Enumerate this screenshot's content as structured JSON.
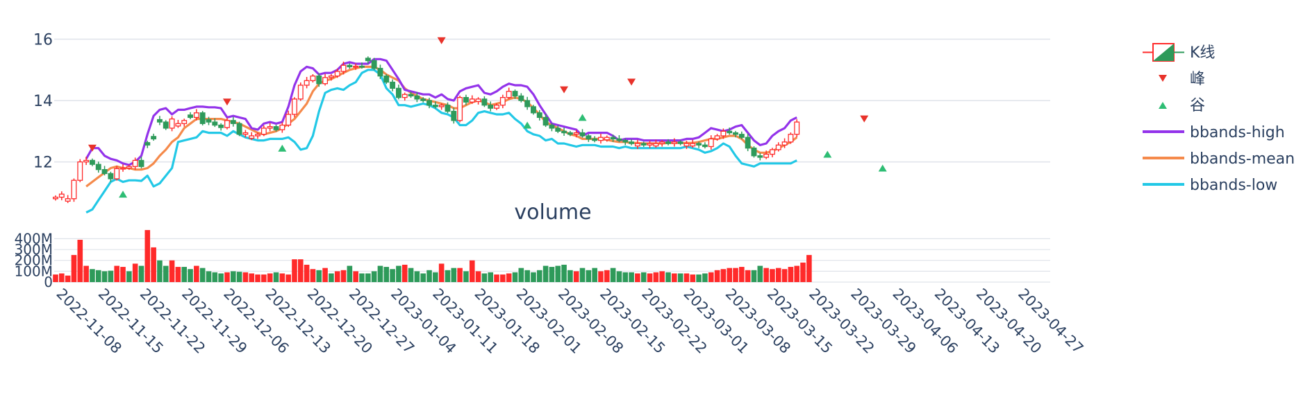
{
  "colors": {
    "up": "#ff2a2a",
    "down": "#2e9a5a",
    "peak": "#e8322a",
    "trough": "#2ebd74",
    "high": "#9333ea",
    "mean": "#f58a4b",
    "low": "#22c8e6",
    "grid": "#dfe3ea"
  },
  "chart_data": [
    {
      "type": "candlestick",
      "ylim": [
        10.5,
        16.6
      ],
      "yticks": [
        12,
        14,
        16
      ],
      "ytick_labels": [
        "12",
        "14",
        "16"
      ],
      "xticks": [
        "2022-11-08",
        "2022-11-15",
        "2022-11-22",
        "2022-11-29",
        "2022-12-06",
        "2022-12-13",
        "2022-12-20",
        "2022-12-27",
        "2023-01-04",
        "2023-01-11",
        "2023-01-18",
        "2023-02-01",
        "2023-02-08",
        "2023-02-15",
        "2023-02-22",
        "2023-03-01",
        "2023-03-08",
        "2023-03-15",
        "2023-03-22",
        "2023-03-29",
        "2023-04-06",
        "2023-04-13",
        "2023-04-20",
        "2023-04-27"
      ],
      "legend": {
        "candles": "K线",
        "peaks": "峰",
        "troughs": "谷",
        "high": "bbands-high",
        "mean": "bbands-mean",
        "low": "bbands-low"
      },
      "close": [
        10.85,
        10.95,
        10.8,
        11.4,
        12.0,
        12.05,
        11.92,
        11.75,
        11.62,
        11.45,
        11.78,
        11.8,
        11.85,
        12.05,
        11.85,
        12.55,
        12.75,
        13.3,
        13.1,
        13.4,
        13.25,
        13.35,
        13.45,
        13.6,
        13.25,
        13.3,
        13.2,
        13.12,
        13.35,
        13.25,
        12.9,
        12.95,
        12.85,
        12.9,
        13.1,
        13.15,
        13.05,
        13.2,
        13.55,
        14.05,
        14.5,
        14.65,
        14.8,
        14.55,
        14.75,
        14.8,
        14.95,
        15.15,
        15.1,
        15.12,
        15.1,
        15.3,
        15.05,
        14.8,
        14.6,
        14.4,
        14.1,
        14.2,
        14.15,
        14.05,
        14.0,
        13.85,
        13.8,
        13.85,
        13.65,
        13.35,
        14.1,
        13.95,
        14.05,
        14.05,
        13.85,
        13.75,
        13.85,
        14.1,
        14.3,
        14.15,
        14.0,
        13.8,
        13.6,
        13.45,
        13.2,
        13.1,
        13.0,
        12.95,
        12.9,
        12.95,
        12.85,
        12.75,
        12.7,
        12.8,
        12.8,
        12.75,
        12.7,
        12.65,
        12.6,
        12.6,
        12.55,
        12.6,
        12.6,
        12.65,
        12.6,
        12.65,
        12.6,
        12.6,
        12.6,
        12.55,
        12.5,
        12.75,
        12.85,
        13.0,
        12.95,
        12.9,
        12.8,
        12.45,
        12.2,
        12.15,
        12.25,
        12.4,
        12.55,
        12.65,
        12.9,
        13.3
      ],
      "dir": [
        1,
        1,
        1,
        1,
        1,
        1,
        -1,
        -1,
        -1,
        -1,
        1,
        1,
        1,
        1,
        -1,
        -1,
        -1,
        -1,
        -1,
        1,
        1,
        1,
        -1,
        1,
        -1,
        -1,
        -1,
        -1,
        1,
        -1,
        -1,
        1,
        1,
        1,
        1,
        1,
        -1,
        1,
        1,
        1,
        1,
        1,
        1,
        -1,
        1,
        1,
        1,
        1,
        -1,
        1,
        -1,
        -1,
        -1,
        -1,
        -1,
        -1,
        -1,
        1,
        -1,
        -1,
        -1,
        -1,
        -1,
        1,
        -1,
        -1,
        1,
        -1,
        1,
        1,
        -1,
        -1,
        1,
        1,
        1,
        -1,
        -1,
        -1,
        -1,
        -1,
        -1,
        -1,
        -1,
        -1,
        -1,
        1,
        -1,
        -1,
        -1,
        1,
        1,
        -1,
        -1,
        -1,
        -1,
        1,
        -1,
        1,
        1,
        1,
        -1,
        1,
        -1,
        1,
        1,
        -1,
        -1,
        1,
        1,
        1,
        -1,
        -1,
        -1,
        -1,
        -1,
        -1,
        1,
        1,
        1,
        1,
        1,
        1
      ],
      "bbands_high": [
        null,
        null,
        null,
        null,
        null,
        12.1,
        12.45,
        12.45,
        12.2,
        12.1,
        12.05,
        11.95,
        11.9,
        12.0,
        12.2,
        12.9,
        13.5,
        13.7,
        13.75,
        13.55,
        13.7,
        13.7,
        13.75,
        13.8,
        13.8,
        13.78,
        13.78,
        13.75,
        13.45,
        13.5,
        13.45,
        13.4,
        13.1,
        13.05,
        13.25,
        13.3,
        13.25,
        13.3,
        13.8,
        14.5,
        14.95,
        15.1,
        15.05,
        14.85,
        14.9,
        14.9,
        15.0,
        15.2,
        15.25,
        15.2,
        15.2,
        15.2,
        15.35,
        15.35,
        15.3,
        15.0,
        14.7,
        14.35,
        14.3,
        14.25,
        14.2,
        14.2,
        14.1,
        14.2,
        14.05,
        14.0,
        14.3,
        14.4,
        14.45,
        14.5,
        14.25,
        14.2,
        14.3,
        14.45,
        14.55,
        14.5,
        14.5,
        14.45,
        14.2,
        13.85,
        13.55,
        13.25,
        13.2,
        13.15,
        13.1,
        13.05,
        12.85,
        12.95,
        12.95,
        12.95,
        12.95,
        12.85,
        12.7,
        12.75,
        12.75,
        12.75,
        12.7,
        12.7,
        12.7,
        12.7,
        12.7,
        12.7,
        12.7,
        12.75,
        12.75,
        12.8,
        12.95,
        13.1,
        13.05,
        13.0,
        13.05,
        13.15,
        13.2,
        12.95,
        12.7,
        12.55,
        12.6,
        12.85,
        13.0,
        13.1,
        13.35,
        13.45
      ],
      "bbands_mean": [
        null,
        null,
        null,
        null,
        null,
        11.2,
        11.35,
        11.5,
        11.65,
        11.8,
        11.85,
        11.8,
        11.8,
        11.75,
        11.75,
        11.8,
        11.95,
        12.2,
        12.4,
        12.65,
        12.8,
        13.1,
        13.25,
        13.4,
        13.4,
        13.4,
        13.4,
        13.4,
        13.35,
        13.3,
        13.25,
        13.15,
        13.05,
        12.95,
        12.9,
        12.95,
        13.0,
        13.1,
        13.25,
        13.4,
        13.65,
        13.9,
        14.3,
        14.55,
        14.65,
        14.7,
        14.8,
        14.9,
        15.0,
        15.05,
        15.1,
        15.1,
        15.1,
        15.0,
        14.85,
        14.75,
        14.65,
        14.4,
        14.25,
        14.15,
        14.05,
        14.0,
        13.95,
        13.9,
        13.85,
        13.75,
        13.75,
        13.85,
        13.95,
        14.0,
        13.95,
        13.85,
        13.9,
        13.95,
        14.05,
        14.1,
        14.05,
        13.95,
        13.75,
        13.55,
        13.3,
        13.2,
        13.1,
        13.0,
        12.9,
        12.85,
        12.75,
        12.75,
        12.75,
        12.75,
        12.72,
        12.68,
        12.65,
        12.65,
        12.62,
        12.62,
        12.6,
        12.6,
        12.6,
        12.6,
        12.62,
        12.62,
        12.62,
        12.62,
        12.62,
        12.65,
        12.7,
        12.75,
        12.75,
        12.8,
        12.85,
        12.85,
        12.75,
        12.55,
        12.4,
        12.3,
        12.3,
        12.35,
        12.45,
        12.55,
        12.65,
        12.8
      ],
      "bbands_low": [
        null,
        null,
        null,
        null,
        null,
        10.35,
        10.45,
        10.75,
        11.05,
        11.35,
        11.45,
        11.35,
        11.4,
        11.4,
        11.38,
        11.55,
        11.2,
        11.3,
        11.55,
        11.8,
        12.65,
        12.7,
        12.75,
        12.8,
        13.0,
        12.95,
        12.95,
        12.95,
        12.85,
        13.0,
        12.9,
        12.8,
        12.75,
        12.7,
        12.7,
        12.75,
        12.75,
        12.75,
        12.8,
        12.65,
        12.4,
        12.45,
        12.85,
        13.65,
        14.25,
        14.35,
        14.4,
        14.35,
        14.5,
        14.6,
        14.9,
        15.0,
        15.0,
        14.85,
        14.4,
        14.2,
        13.85,
        13.85,
        13.8,
        13.85,
        13.9,
        13.85,
        13.75,
        13.6,
        13.55,
        13.45,
        13.2,
        13.2,
        13.35,
        13.6,
        13.65,
        13.6,
        13.55,
        13.55,
        13.6,
        13.4,
        13.25,
        13.0,
        12.9,
        12.85,
        12.7,
        12.75,
        12.6,
        12.6,
        12.55,
        12.5,
        12.55,
        12.55,
        12.55,
        12.5,
        12.5,
        12.5,
        12.45,
        12.5,
        12.45,
        12.45,
        12.45,
        12.45,
        12.45,
        12.45,
        12.45,
        12.45,
        12.45,
        12.5,
        12.45,
        12.4,
        12.3,
        12.35,
        12.45,
        12.6,
        12.5,
        12.2,
        11.95,
        11.9,
        11.85,
        11.95,
        11.95,
        11.95,
        11.95,
        11.95,
        11.95,
        12.05
      ],
      "peaks": [
        {
          "i": 6,
          "y": 12.45
        },
        {
          "i": 28,
          "y": 13.95
        },
        {
          "i": 63,
          "y": 15.95
        },
        {
          "i": 83,
          "y": 14.35
        },
        {
          "i": 94,
          "y": 14.6
        },
        {
          "i": 132,
          "y": 13.4
        }
      ],
      "troughs": [
        {
          "i": 11,
          "y": 10.95
        },
        {
          "i": 37,
          "y": 12.45
        },
        {
          "i": 77,
          "y": 13.2
        },
        {
          "i": 86,
          "y": 13.45
        },
        {
          "i": 126,
          "y": 12.25
        },
        {
          "i": 135,
          "y": 11.8
        }
      ]
    },
    {
      "type": "bar",
      "title": "volume",
      "ylim": [
        0,
        460
      ],
      "yticks": [
        0,
        100,
        200,
        300,
        400
      ],
      "ytick_labels": [
        "0",
        "100M",
        "200M",
        "300M",
        "400M"
      ],
      "values": [
        70,
        80,
        60,
        250,
        390,
        150,
        120,
        110,
        100,
        105,
        150,
        140,
        100,
        170,
        150,
        480,
        320,
        200,
        150,
        200,
        140,
        140,
        120,
        150,
        130,
        100,
        90,
        80,
        90,
        100,
        95,
        90,
        80,
        70,
        70,
        80,
        90,
        80,
        70,
        210,
        210,
        160,
        120,
        110,
        130,
        80,
        100,
        110,
        150,
        100,
        80,
        80,
        100,
        150,
        140,
        120,
        150,
        160,
        130,
        100,
        80,
        110,
        90,
        170,
        110,
        130,
        130,
        100,
        200,
        100,
        80,
        90,
        70,
        70,
        80,
        90,
        130,
        110,
        90,
        110,
        150,
        140,
        150,
        160,
        110,
        100,
        130,
        110,
        130,
        100,
        110,
        130,
        100,
        90,
        90,
        80,
        90,
        80,
        90,
        100,
        90,
        80,
        80,
        80,
        70,
        70,
        80,
        90,
        110,
        120,
        130,
        130,
        140,
        110,
        110,
        150,
        130,
        120,
        130,
        120,
        140,
        150,
        180,
        250
      ],
      "dir": [
        1,
        1,
        1,
        1,
        1,
        1,
        -1,
        -1,
        -1,
        -1,
        1,
        1,
        -1,
        1,
        -1,
        1,
        1,
        -1,
        -1,
        1,
        1,
        -1,
        -1,
        1,
        -1,
        -1,
        -1,
        -1,
        1,
        -1,
        -1,
        1,
        1,
        1,
        1,
        1,
        -1,
        1,
        1,
        1,
        1,
        1,
        1,
        -1,
        1,
        -1,
        1,
        1,
        -1,
        1,
        -1,
        -1,
        -1,
        -1,
        -1,
        -1,
        -1,
        1,
        -1,
        -1,
        -1,
        -1,
        -1,
        1,
        -1,
        -1,
        1,
        -1,
        1,
        1,
        -1,
        -1,
        1,
        1,
        1,
        -1,
        -1,
        -1,
        -1,
        -1,
        -1,
        -1,
        -1,
        -1,
        -1,
        1,
        -1,
        -1,
        -1,
        1,
        1,
        -1,
        -1,
        -1,
        -1,
        1,
        -1,
        1,
        1,
        1,
        -1,
        1,
        -1,
        1,
        1,
        -1,
        -1,
        1,
        1,
        1,
        1,
        1,
        1,
        1,
        -1,
        -1,
        1,
        1,
        1,
        1,
        1,
        1,
        1,
        1
      ]
    }
  ]
}
